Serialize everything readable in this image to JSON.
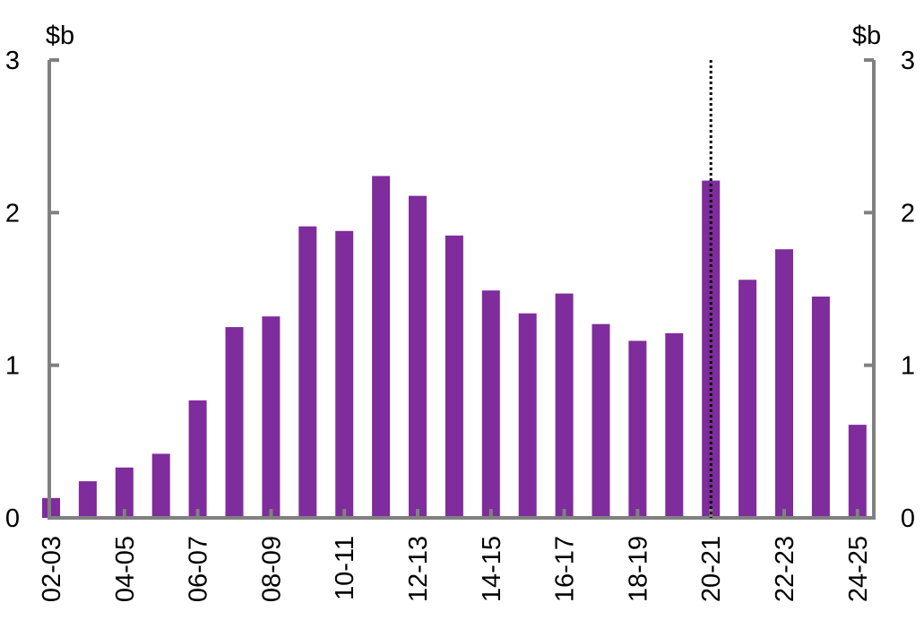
{
  "chart_data": {
    "type": "bar",
    "title": "",
    "xlabel": "",
    "ylabel": "",
    "y_unit_left": "$b",
    "y_unit_right": "$b",
    "ylim": [
      0,
      3
    ],
    "yticks": [
      "0",
      "1",
      "2",
      "3"
    ],
    "grid": false,
    "legend": "none",
    "categories": [
      "02-03",
      "03-04",
      "04-05",
      "05-06",
      "06-07",
      "07-08",
      "08-09",
      "09-10",
      "10-11",
      "11-12",
      "12-13",
      "13-14",
      "14-15",
      "15-16",
      "16-17",
      "17-18",
      "18-19",
      "19-20",
      "20-21",
      "21-22",
      "22-23",
      "23-24",
      "24-25"
    ],
    "x_tick_labels": [
      "02-03",
      "04-05",
      "06-07",
      "08-09",
      "10-11",
      "12-13",
      "14-15",
      "16-17",
      "18-19",
      "20-21",
      "22-23",
      "24-25"
    ],
    "values": [
      0.13,
      0.24,
      0.33,
      0.42,
      0.77,
      1.25,
      1.32,
      1.91,
      1.88,
      2.24,
      2.11,
      1.85,
      1.49,
      1.34,
      1.47,
      1.27,
      1.16,
      1.21,
      2.21,
      1.56,
      1.76,
      1.45,
      0.61
    ],
    "divider_after_category": "20-21",
    "colors": {
      "bar": "#7f2c9c",
      "axis": "#808080",
      "divider": "#000000"
    }
  }
}
